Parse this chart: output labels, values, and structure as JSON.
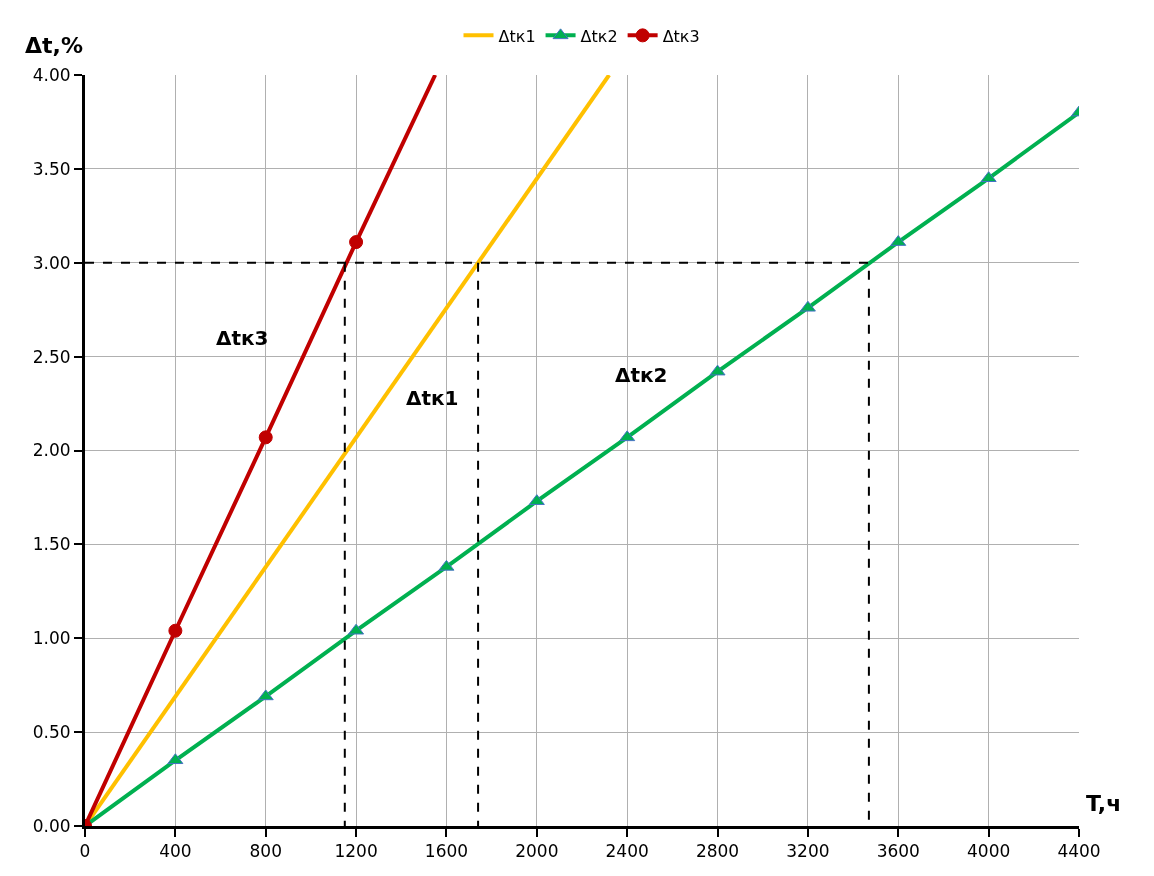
{
  "chart_data": {
    "type": "line",
    "xlabel": "T,ч",
    "ylabel": "Δt,%",
    "xlim": [
      0,
      4400
    ],
    "xticks": [
      0,
      400,
      800,
      1200,
      1600,
      2000,
      2400,
      2800,
      3200,
      3600,
      4000,
      4400
    ],
    "ylim": [
      0,
      4.0
    ],
    "yticks": [
      {
        "value": 0,
        "label": "0.00"
      },
      {
        "value": 0.5,
        "label": "0.50"
      },
      {
        "value": 1.0,
        "label": "1.00"
      },
      {
        "value": 1.5,
        "label": "1.50"
      },
      {
        "value": 2.0,
        "label": "2.00"
      },
      {
        "value": 2.5,
        "label": "2.50"
      },
      {
        "value": 3.0,
        "label": "3.00"
      },
      {
        "value": 3.5,
        "label": "3.50"
      },
      {
        "value": 4.0,
        "label": "4.00"
      }
    ],
    "grid": true,
    "legend": "top",
    "series": [
      {
        "name": "Δtк1",
        "color": "#ffc000",
        "marker": "none",
        "x": [
          0,
          2320
        ],
        "values": [
          0,
          4.0
        ]
      },
      {
        "name": "Δtк2",
        "color": "#00b050",
        "marker": "triangle",
        "x": [
          0,
          400,
          800,
          1200,
          1600,
          2000,
          2400,
          2800,
          3200,
          3600,
          4000,
          4400
        ],
        "values": [
          0,
          0.35,
          0.69,
          1.04,
          1.38,
          1.73,
          2.07,
          2.42,
          2.76,
          3.11,
          3.45,
          3.8
        ]
      },
      {
        "name": "Δtк3",
        "color": "#c00000",
        "marker": "circle",
        "x": [
          0,
          400,
          800,
          1200
        ],
        "values": [
          0,
          1.04,
          2.07,
          3.11
        ]
      },
      {
        "color": "#c00000",
        "marker": "none",
        "x": [
          1200,
          1550
        ],
        "values": [
          3.11,
          4.0
        ]
      },
      {
        "color": "#000000",
        "marker": "none",
        "line_style": "dashed",
        "x": [
          0,
          3470,
          3470
        ],
        "values": [
          3.0,
          3.0,
          0
        ]
      },
      {
        "color": "#000000",
        "marker": "none",
        "line_style": "dashed",
        "x": [
          1740,
          1740
        ],
        "values": [
          3.0,
          0
        ]
      },
      {
        "color": "#000000",
        "marker": "none",
        "line_style": "dashed",
        "x": [
          1150,
          1150
        ],
        "values": [
          3.0,
          0
        ]
      }
    ],
    "annotations": [
      "Δtк3",
      "Δtк1",
      "Δtк2"
    ]
  }
}
